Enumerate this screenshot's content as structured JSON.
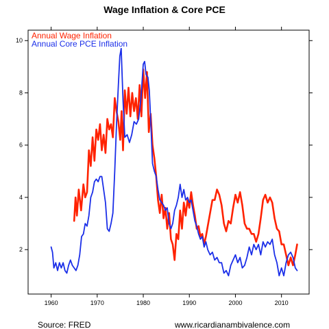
{
  "chart_data": {
    "type": "line",
    "title": "Wage Inflation & Core PCE",
    "xlim": [
      1955,
      2016
    ],
    "ylim": [
      0.3,
      10.4
    ],
    "x_ticks": [
      1960,
      1970,
      1980,
      1990,
      2000,
      2010
    ],
    "y_ticks": [
      2,
      4,
      6,
      8,
      10
    ],
    "grid": false,
    "legend_position": "top-left",
    "series": [
      {
        "name": "Annual Wage Inflation",
        "color": "#ff2200",
        "x": [
          1965.0,
          1965.3,
          1965.6,
          1966.0,
          1966.5,
          1967.0,
          1967.4,
          1967.8,
          1968.2,
          1968.6,
          1969.0,
          1969.4,
          1969.8,
          1970.2,
          1970.6,
          1971.0,
          1971.4,
          1971.8,
          1972.2,
          1972.6,
          1973.0,
          1973.4,
          1973.8,
          1974.2,
          1974.6,
          1975.0,
          1975.3,
          1975.6,
          1976.0,
          1976.4,
          1976.8,
          1977.2,
          1977.6,
          1978.0,
          1978.4,
          1978.8,
          1979.2,
          1979.6,
          1980.0,
          1980.4,
          1980.8,
          1981.2,
          1981.6,
          1982.0,
          1982.4,
          1982.8,
          1983.2,
          1983.6,
          1984.0,
          1984.4,
          1984.8,
          1985.2,
          1985.6,
          1986.0,
          1986.4,
          1986.8,
          1987.2,
          1987.6,
          1988.0,
          1988.4,
          1988.8,
          1989.2,
          1989.6,
          1990.0,
          1990.4,
          1990.8,
          1991.2,
          1991.6,
          1992.0,
          1992.4,
          1992.8,
          1993.2,
          1993.6,
          1994.0,
          1994.5,
          1995.0,
          1995.5,
          1996.0,
          1996.5,
          1997.0,
          1997.5,
          1998.0,
          1998.5,
          1999.0,
          1999.5,
          2000.0,
          2000.5,
          2001.0,
          2001.5,
          2002.0,
          2002.5,
          2003.0,
          2003.5,
          2004.0,
          2004.5,
          2005.0,
          2005.5,
          2006.0,
          2006.5,
          2007.0,
          2007.5,
          2008.0,
          2008.5,
          2009.0,
          2009.5,
          2010.0,
          2010.5,
          2011.0,
          2011.5,
          2012.0,
          2012.5,
          2013.0,
          2013.4
        ],
        "values": [
          3.1,
          4.0,
          3.3,
          4.3,
          3.5,
          4.5,
          4.0,
          4.2,
          5.8,
          5.2,
          6.3,
          5.4,
          6.6,
          6.2,
          6.8,
          5.8,
          6.4,
          5.7,
          7.0,
          6.6,
          6.8,
          6.3,
          7.8,
          7.3,
          6.9,
          6.2,
          7.3,
          5.8,
          8.1,
          7.2,
          8.2,
          7.1,
          8.0,
          7.3,
          7.8,
          7.0,
          8.3,
          7.1,
          8.9,
          7.8,
          8.8,
          6.5,
          7.2,
          6.0,
          5.5,
          4.8,
          3.9,
          3.4,
          4.1,
          3.2,
          3.6,
          2.8,
          3.4,
          2.4,
          2.2,
          1.6,
          2.6,
          2.4,
          3.5,
          2.8,
          3.8,
          3.3,
          3.9,
          3.6,
          4.2,
          3.7,
          3.3,
          2.8,
          2.9,
          2.5,
          2.6,
          2.2,
          2.5,
          2.9,
          3.4,
          3.9,
          3.9,
          4.3,
          4.1,
          3.7,
          3.0,
          2.7,
          3.1,
          3.0,
          3.6,
          4.1,
          3.8,
          4.2,
          3.7,
          3.0,
          2.8,
          2.8,
          2.6,
          2.6,
          2.3,
          2.6,
          3.2,
          3.9,
          4.1,
          3.8,
          4.0,
          3.8,
          3.2,
          2.8,
          2.7,
          2.2,
          2.2,
          1.8,
          1.4,
          1.7,
          1.4,
          1.8,
          2.2
        ]
      },
      {
        "name": "Annual Core PCE Inflation",
        "color": "#1a2ee8",
        "x": [
          1960.0,
          1960.3,
          1960.6,
          1961.0,
          1961.4,
          1961.8,
          1962.2,
          1962.6,
          1963.0,
          1963.4,
          1963.8,
          1964.2,
          1964.6,
          1965.0,
          1965.4,
          1965.8,
          1966.2,
          1966.6,
          1967.0,
          1967.4,
          1967.8,
          1968.2,
          1968.6,
          1969.0,
          1969.4,
          1969.8,
          1970.2,
          1970.6,
          1971.0,
          1971.4,
          1971.8,
          1972.2,
          1972.6,
          1973.0,
          1973.4,
          1973.8,
          1974.2,
          1974.6,
          1974.9,
          1975.2,
          1975.6,
          1976.0,
          1976.5,
          1977.0,
          1977.5,
          1978.0,
          1978.5,
          1979.0,
          1979.5,
          1980.0,
          1980.3,
          1980.6,
          1981.0,
          1981.3,
          1981.6,
          1982.0,
          1982.4,
          1982.8,
          1983.2,
          1983.6,
          1984.0,
          1984.4,
          1984.8,
          1985.2,
          1985.6,
          1986.0,
          1986.4,
          1986.8,
          1987.2,
          1987.6,
          1988.0,
          1988.4,
          1988.8,
          1989.2,
          1989.6,
          1990.0,
          1990.4,
          1990.8,
          1991.2,
          1991.6,
          1992.0,
          1992.4,
          1992.8,
          1993.2,
          1993.6,
          1994.0,
          1994.5,
          1995.0,
          1995.5,
          1996.0,
          1996.5,
          1997.0,
          1997.5,
          1998.0,
          1998.5,
          1999.0,
          1999.5,
          2000.0,
          2000.5,
          2001.0,
          2001.5,
          2002.0,
          2002.5,
          2003.0,
          2003.5,
          2004.0,
          2004.5,
          2005.0,
          2005.5,
          2006.0,
          2006.5,
          2007.0,
          2007.5,
          2008.0,
          2008.5,
          2009.0,
          2009.5,
          2010.0,
          2010.5,
          2011.0,
          2011.5,
          2012.0,
          2012.5,
          2013.0,
          2013.4
        ],
        "values": [
          2.1,
          1.9,
          1.3,
          1.5,
          1.2,
          1.5,
          1.3,
          1.5,
          1.2,
          1.1,
          1.4,
          1.6,
          1.4,
          1.3,
          1.2,
          1.4,
          1.8,
          2.5,
          2.6,
          3.0,
          2.9,
          3.3,
          4.0,
          4.2,
          4.6,
          4.7,
          4.6,
          4.8,
          4.8,
          4.3,
          3.8,
          2.8,
          2.7,
          3.0,
          3.4,
          5.0,
          6.8,
          8.3,
          9.4,
          9.7,
          7.7,
          6.3,
          6.4,
          6.1,
          6.4,
          6.9,
          6.8,
          7.0,
          7.8,
          9.1,
          9.2,
          8.7,
          8.6,
          8.1,
          7.0,
          5.3,
          5.0,
          4.8,
          4.3,
          3.9,
          3.8,
          3.7,
          3.5,
          3.6,
          3.0,
          2.8,
          3.0,
          3.5,
          3.7,
          4.0,
          4.5,
          4.0,
          4.3,
          3.9,
          4.0,
          3.8,
          3.9,
          3.5,
          3.1,
          2.9,
          2.6,
          2.4,
          2.5,
          2.1,
          2.3,
          2.0,
          1.8,
          1.9,
          1.6,
          1.7,
          1.5,
          1.5,
          1.1,
          1.2,
          1.0,
          1.4,
          1.6,
          1.8,
          1.5,
          1.7,
          1.3,
          1.4,
          1.7,
          2.1,
          1.8,
          2.2,
          2.0,
          2.2,
          1.8,
          2.3,
          2.1,
          2.3,
          2.2,
          2.4,
          1.8,
          1.5,
          1.0,
          1.3,
          1.0,
          1.5,
          1.8,
          1.9,
          1.7,
          1.3,
          1.2
        ]
      }
    ]
  },
  "footer": {
    "source": "Source: FRED",
    "website": "www.ricardianambivalence.com"
  }
}
